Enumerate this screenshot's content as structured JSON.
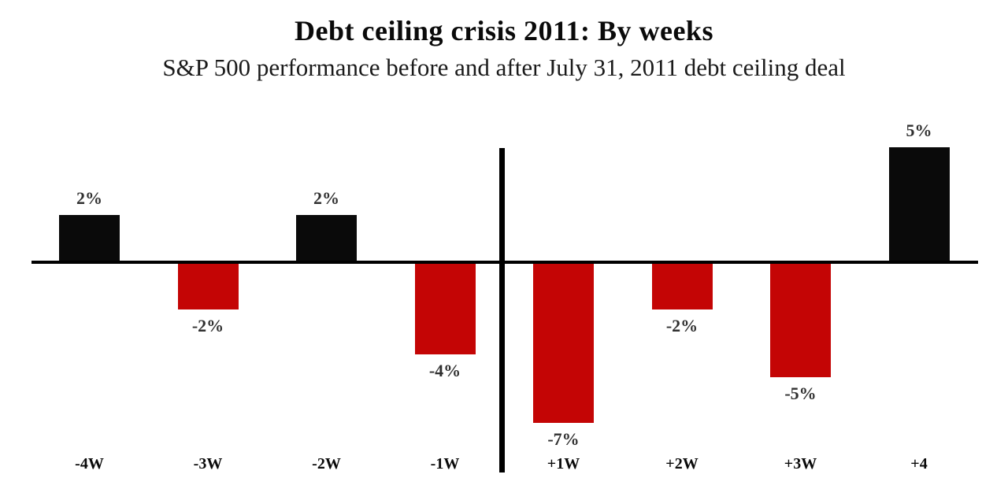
{
  "title": "Debt ceiling crisis 2011: By weeks",
  "subtitle": "S&P 500 performance before and after July 31, 2011 debt ceiling deal",
  "chart_data": {
    "type": "bar",
    "title": "Debt ceiling crisis 2011: By weeks",
    "subtitle": "S&P 500 performance before and after July 31, 2011 debt ceiling deal",
    "categories": [
      "-4W",
      "-3W",
      "-2W",
      "-1W",
      "+1W",
      "+2W",
      "+3W",
      "+4"
    ],
    "values": [
      2,
      -2,
      2,
      -4,
      -7,
      -2,
      -5,
      5
    ],
    "value_labels": [
      "2%",
      "-2%",
      "2%",
      "-4%",
      "-7%",
      "-2%",
      "-5%",
      "5%"
    ],
    "xlabel": "",
    "ylabel": "",
    "ylim": [
      -8,
      6
    ],
    "grid": false,
    "legend": false,
    "annotations": "thick vertical divider line between -1W and +1W marking the July 31, 2011 deal",
    "positive_color": "#0a0a0a",
    "negative_color": "#c40505",
    "axis_color": "#000000",
    "value_label_color": "#303030",
    "category_label_color": "#0a0a0a"
  }
}
